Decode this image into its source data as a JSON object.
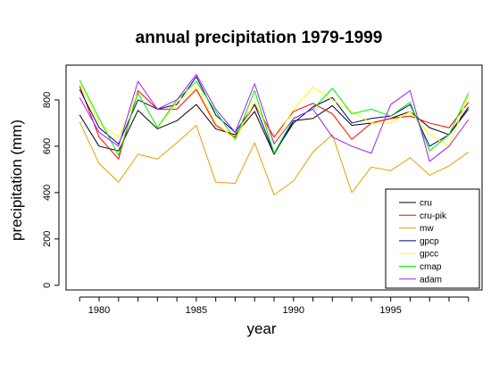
{
  "chart_data": {
    "type": "line",
    "title": "annual precipitation 1979-1999",
    "xlabel": "year",
    "ylabel": "precipitation (mm)",
    "xlim": [
      1978.3,
      1999.7
    ],
    "ylim": [
      -20,
      950
    ],
    "x": [
      1979,
      1980,
      1981,
      1982,
      1983,
      1984,
      1985,
      1986,
      1987,
      1988,
      1989,
      1990,
      1991,
      1992,
      1993,
      1994,
      1995,
      1996,
      1997,
      1998,
      1999
    ],
    "xticks": [
      1980,
      1985,
      1990,
      1995
    ],
    "xtick_labels": [
      "1980",
      "1985",
      "1990",
      "1995"
    ],
    "yticks": [
      0,
      200,
      400,
      600,
      800
    ],
    "ytick_labels": [
      "0",
      "200",
      "400",
      "600",
      "800"
    ],
    "grid": false,
    "legend_position": "bottom-right",
    "series": [
      {
        "name": "cru",
        "color": "#000000",
        "values": [
          735,
          600,
          580,
          755,
          675,
          710,
          780,
          675,
          650,
          750,
          565,
          710,
          720,
          775,
          690,
          700,
          720,
          750,
          680,
          650,
          760
        ]
      },
      {
        "name": "cru-pik",
        "color": "#ff0000",
        "values": [
          860,
          640,
          545,
          840,
          760,
          760,
          845,
          690,
          640,
          780,
          640,
          750,
          785,
          740,
          630,
          700,
          720,
          730,
          700,
          680,
          790
        ]
      },
      {
        "name": "mw",
        "color": "#e6a000",
        "values": [
          705,
          525,
          445,
          565,
          545,
          615,
          690,
          445,
          440,
          615,
          390,
          450,
          575,
          650,
          400,
          510,
          495,
          550,
          475,
          515,
          575
        ]
      },
      {
        "name": "gpcp",
        "color": "#00008b",
        "values": [
          845,
          680,
          610,
          800,
          760,
          780,
          900,
          735,
          660,
          780,
          570,
          700,
          770,
          810,
          700,
          720,
          730,
          780,
          600,
          650,
          770
        ]
      },
      {
        "name": "gpcc",
        "color": "#ffff00",
        "values": [
          870,
          700,
          640,
          830,
          680,
          790,
          855,
          700,
          630,
          790,
          620,
          760,
          855,
          800,
          750,
          700,
          700,
          750,
          650,
          600,
          820
        ]
      },
      {
        "name": "cmap",
        "color": "#00ee00",
        "values": [
          885,
          720,
          560,
          830,
          680,
          800,
          880,
          750,
          630,
          840,
          570,
          720,
          760,
          850,
          740,
          760,
          730,
          790,
          580,
          650,
          830
        ]
      },
      {
        "name": "adam",
        "color": "#a020f0",
        "values": [
          810,
          660,
          600,
          880,
          760,
          800,
          910,
          760,
          660,
          870,
          610,
          720,
          760,
          640,
          600,
          570,
          780,
          840,
          535,
          600,
          715
        ]
      }
    ]
  }
}
